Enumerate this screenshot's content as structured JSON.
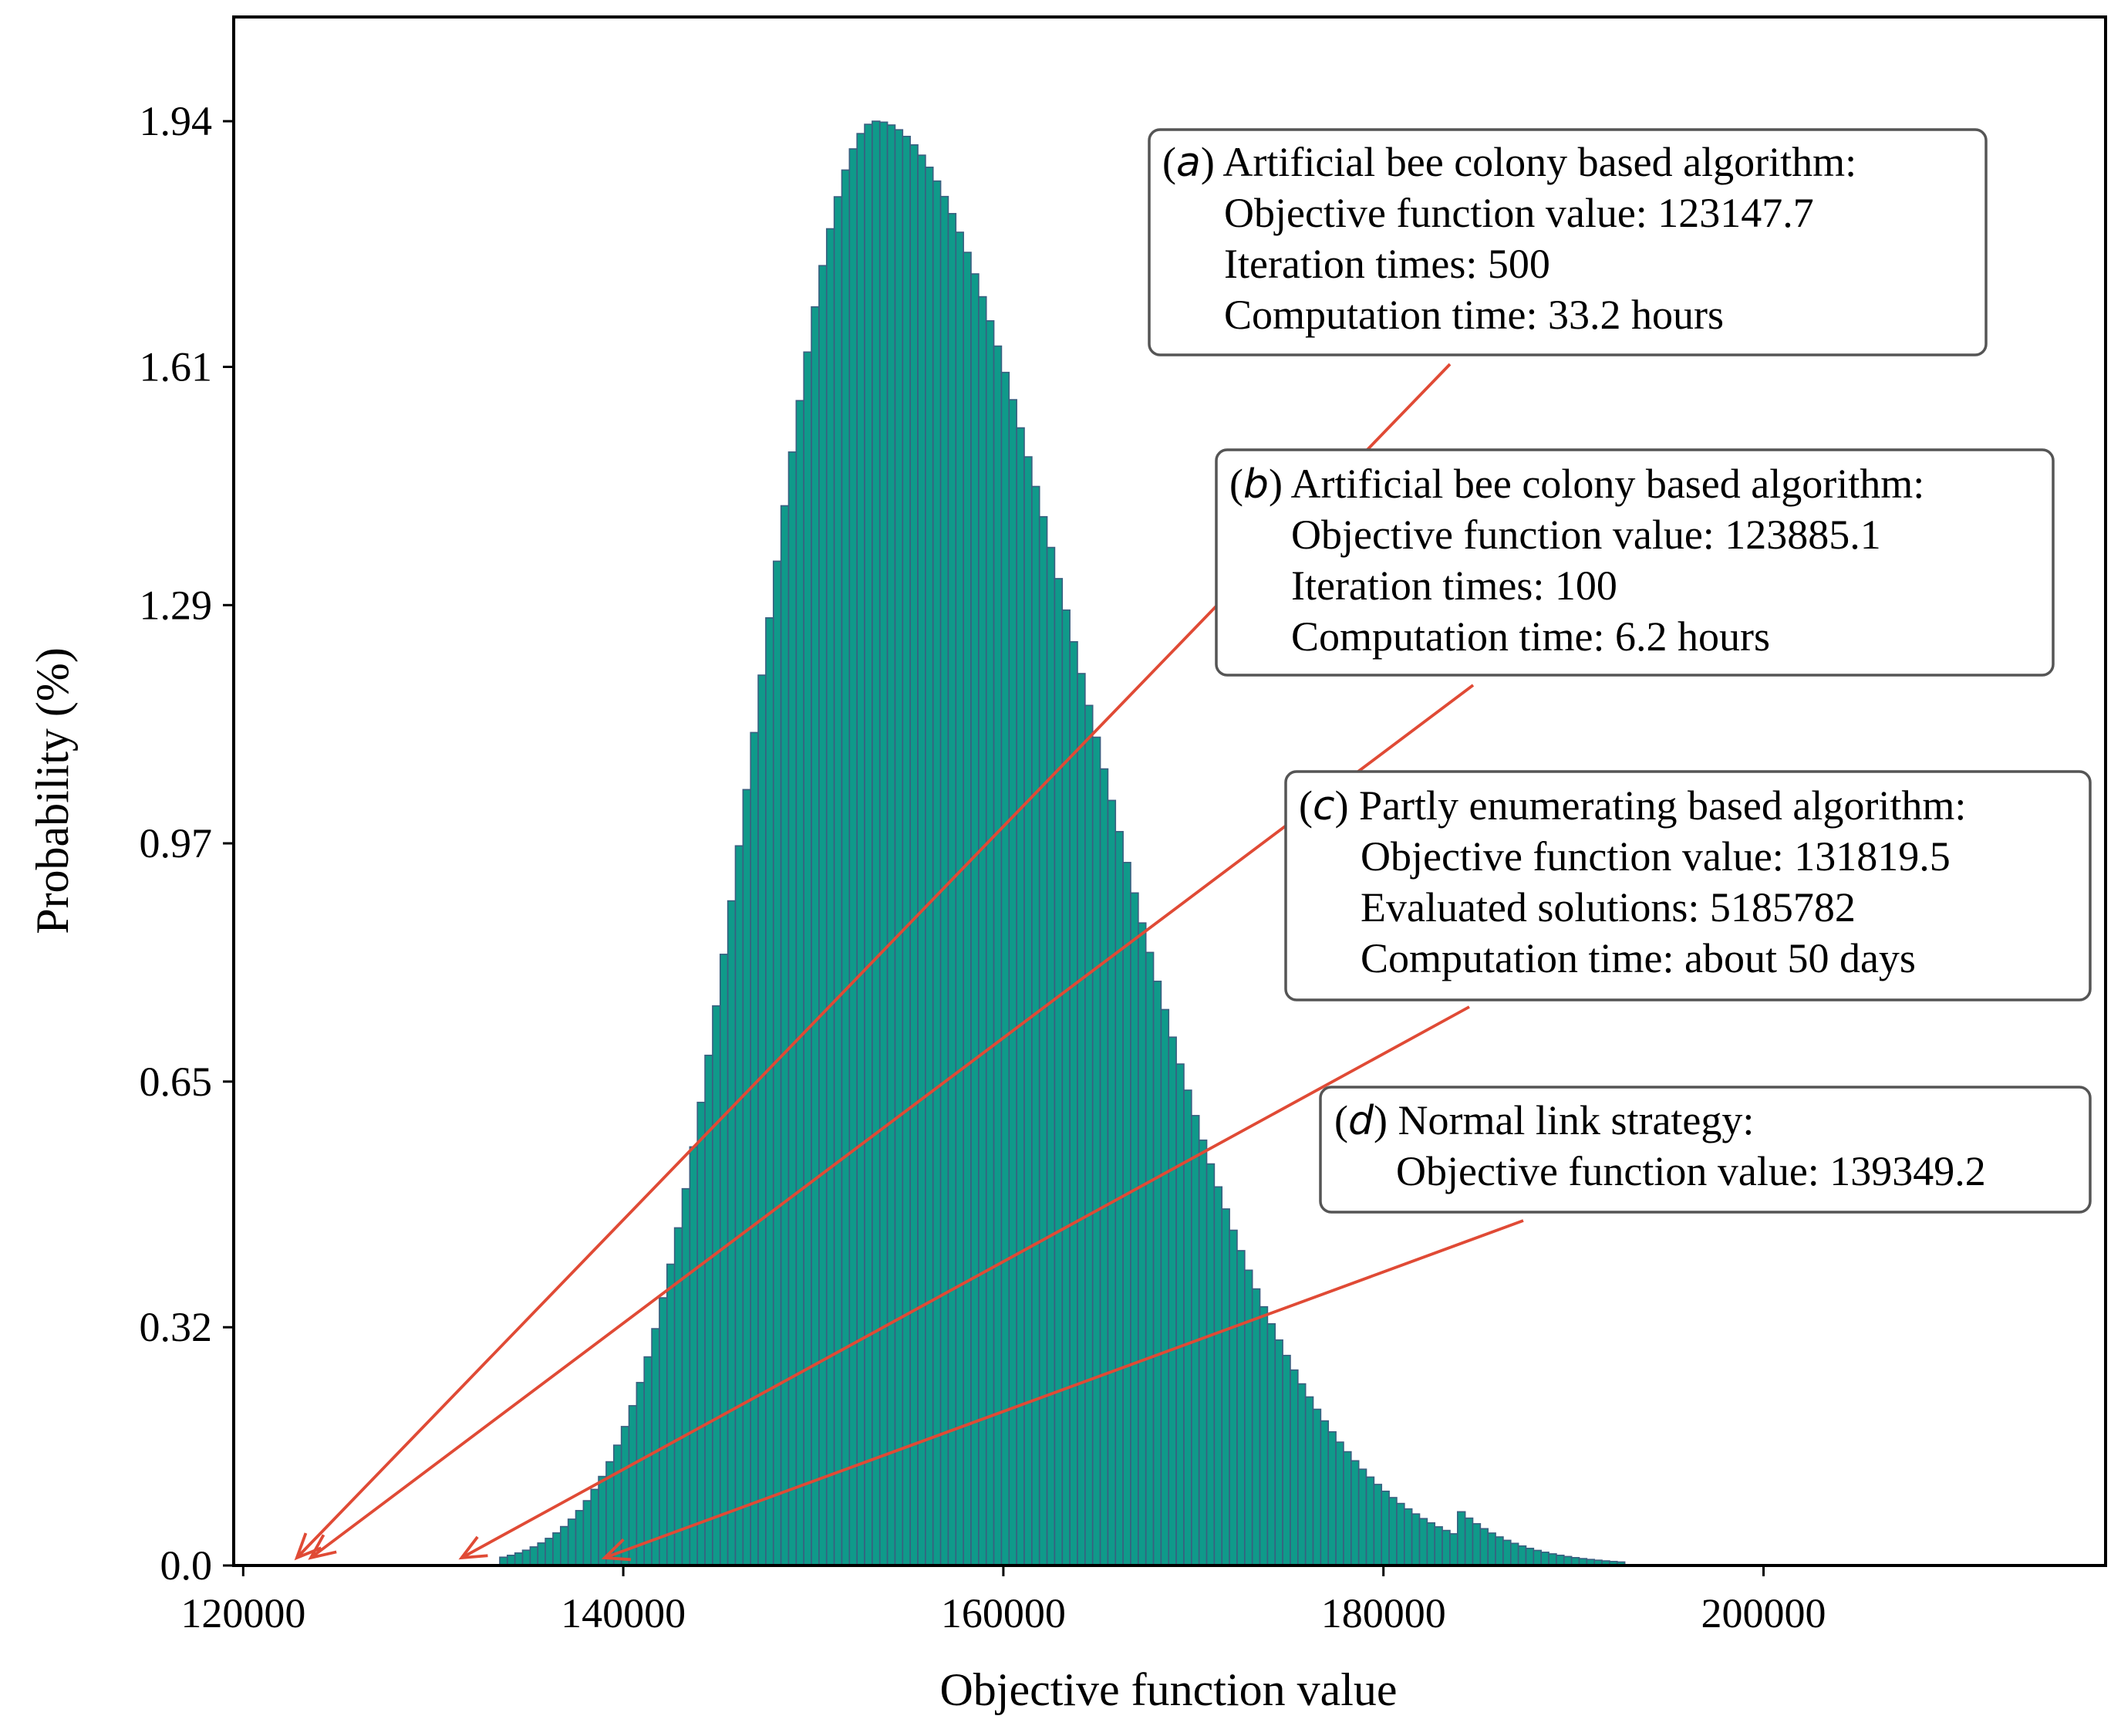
{
  "chart_data": {
    "type": "bar",
    "xlabel": "Objective function value",
    "ylabel": "Probability (%)",
    "xlim": [
      119500,
      218000
    ],
    "ylim": [
      0,
      2.08
    ],
    "xticks": [
      120000,
      140000,
      160000,
      180000,
      200000
    ],
    "xtick_labels": [
      "120000",
      "140000",
      "160000",
      "180000",
      "200000"
    ],
    "yticks": [
      0.0,
      0.32,
      0.65,
      0.97,
      1.29,
      1.61,
      1.94
    ],
    "ytick_labels": [
      "0.0",
      "0.32",
      "0.65",
      "0.97",
      "1.29",
      "1.61",
      "1.94"
    ],
    "grid": false,
    "bar_color": "#0f9a8a",
    "edge_color": "#3a5f80",
    "arrow_color": "#e04a35",
    "histogram": {
      "bin_start": 133500,
      "bin_width": 400,
      "bin_count": 148,
      "mode_center": 153300,
      "mode_value": 1.94,
      "left_sigma": 6100,
      "right_sigma": 11000,
      "tail_end": 193000
    },
    "annotations": [
      {
        "letter": "a",
        "lines": [
          "Artificial bee colony based algorithm:",
          "Objective function value: 123147.7",
          "Iteration times: 500",
          "Computation time: 33.2 hours"
        ],
        "target_x": 123147.7
      },
      {
        "letter": "b",
        "lines": [
          "Artificial bee colony based algorithm:",
          "Objective function value: 123885.1",
          "Iteration times: 100",
          "Computation time: 6.2 hours"
        ],
        "target_x": 123885.1
      },
      {
        "letter": "c",
        "lines": [
          "Partly enumerating based algorithm:",
          "Objective function value: 131819.5",
          "Evaluated solutions: 5185782",
          "Computation time: about 50 days"
        ],
        "target_x": 131819.5
      },
      {
        "letter": "d",
        "lines": [
          "Normal link strategy:",
          "Objective function value: 139349.2"
        ],
        "target_x": 139349.2
      }
    ]
  }
}
